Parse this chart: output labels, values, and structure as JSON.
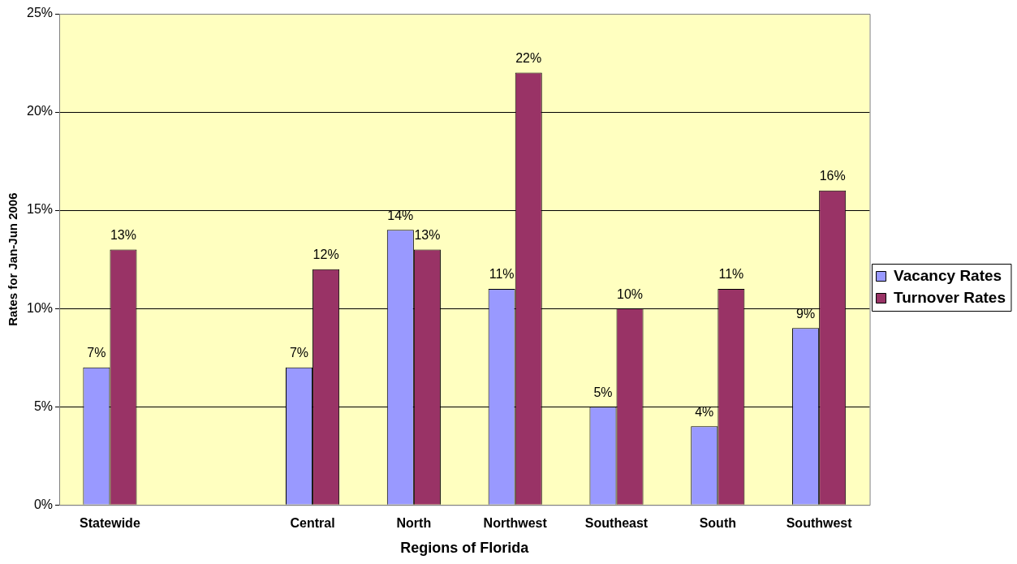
{
  "chart_data": {
    "type": "bar",
    "xlabel": "Regions of Florida",
    "ylabel": "Rates for Jan-Jun 2006",
    "categories": [
      "Statewide",
      null,
      "Central",
      "North",
      "Northwest",
      "Southeast",
      "South",
      "Southwest"
    ],
    "series": [
      {
        "name": "Vacancy Rates",
        "color": "#9999ff",
        "values": [
          7,
          null,
          7,
          14,
          11,
          5,
          4,
          9
        ],
        "value_labels": [
          "7%",
          null,
          "7%",
          "14%",
          "11%",
          "5%",
          "4%",
          "9%"
        ]
      },
      {
        "name": "Turnover Rates",
        "color": "#993366",
        "values": [
          13,
          null,
          12,
          13,
          22,
          10,
          11,
          16
        ],
        "value_labels": [
          "13%",
          null,
          "12%",
          "13%",
          "22%",
          "10%",
          "11%",
          "16%"
        ]
      }
    ],
    "ylim": [
      0,
      25
    ],
    "yticks": [
      {
        "value": 0,
        "label": "0%"
      },
      {
        "value": 5,
        "label": "5%"
      },
      {
        "value": 10,
        "label": "10%"
      },
      {
        "value": 15,
        "label": "15%"
      },
      {
        "value": 20,
        "label": "20%"
      },
      {
        "value": 25,
        "label": "25%"
      }
    ],
    "grid": "y",
    "legend": "right"
  }
}
